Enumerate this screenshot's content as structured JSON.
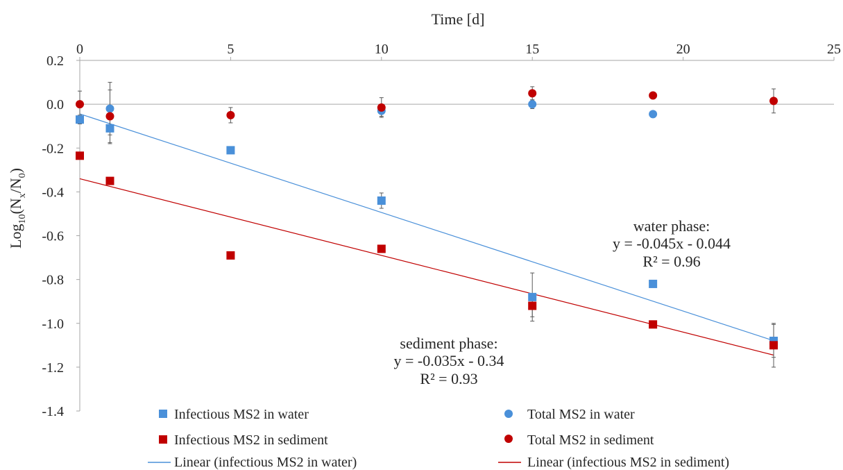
{
  "chart_data": {
    "type": "scatter",
    "xlabel": "Time [d]",
    "ylabel_parts": [
      "Log",
      "10",
      "(N",
      "x",
      "/N",
      "0",
      ")"
    ],
    "xlim": [
      0,
      25
    ],
    "ylim": [
      -1.4,
      0.2
    ],
    "x_ticks": [
      "0",
      "5",
      "10",
      "15",
      "20",
      "25"
    ],
    "y_ticks": [
      "0.2",
      "0.0",
      "-0.2",
      "-0.4",
      "-0.6",
      "-0.8",
      "-1.0",
      "-1.2",
      "-1.4"
    ],
    "x_axis_position": "top",
    "grid": false,
    "colors": {
      "water": "#4a90d9",
      "sediment": "#c00000",
      "axis": "#a6a6a6"
    },
    "series": [
      {
        "name": "Infectious MS2 in water",
        "marker": "square",
        "color": "#4a90d9",
        "points": [
          {
            "x": 0,
            "y": -0.07,
            "err": 0.02
          },
          {
            "x": 1,
            "y": -0.11,
            "err": 0.07
          },
          {
            "x": 5,
            "y": -0.21,
            "err": 0.0
          },
          {
            "x": 10,
            "y": -0.44,
            "err": 0.035
          },
          {
            "x": 15,
            "y": -0.88,
            "err": 0.11
          },
          {
            "x": 19,
            "y": -0.82,
            "err": 0.0
          },
          {
            "x": 23,
            "y": -1.08,
            "err": 0.075
          }
        ]
      },
      {
        "name": "Total MS2 in water",
        "marker": "circle",
        "color": "#4a90d9",
        "points": [
          {
            "x": 1,
            "y": -0.02,
            "err": 0.12
          },
          {
            "x": 10,
            "y": -0.03,
            "err": 0.025
          },
          {
            "x": 15,
            "y": 0.0,
            "err": 0.02
          },
          {
            "x": 19,
            "y": -0.045,
            "err": 0.0
          }
        ]
      },
      {
        "name": "Infectious MS2 in sediment",
        "marker": "square",
        "color": "#c00000",
        "points": [
          {
            "x": 0,
            "y": -0.235,
            "err": 0.0
          },
          {
            "x": 1,
            "y": -0.35,
            "err": 0.0
          },
          {
            "x": 5,
            "y": -0.69,
            "err": 0.0
          },
          {
            "x": 10,
            "y": -0.66,
            "err": 0.0
          },
          {
            "x": 15,
            "y": -0.92,
            "err": 0.05
          },
          {
            "x": 19,
            "y": -1.005,
            "err": 0.0
          },
          {
            "x": 23,
            "y": -1.1,
            "err": 0.1
          }
        ]
      },
      {
        "name": "Total MS2 in sediment",
        "marker": "circle",
        "color": "#c00000",
        "points": [
          {
            "x": 0,
            "y": 0.0,
            "err": 0.06
          },
          {
            "x": 1,
            "y": -0.055,
            "err": 0.12
          },
          {
            "x": 5,
            "y": -0.05,
            "err": 0.035
          },
          {
            "x": 10,
            "y": -0.015,
            "err": 0.045
          },
          {
            "x": 15,
            "y": 0.05,
            "err": 0.03
          },
          {
            "x": 19,
            "y": 0.04,
            "err": 0.015
          },
          {
            "x": 23,
            "y": 0.015,
            "err": 0.055
          }
        ]
      }
    ],
    "trendlines": [
      {
        "name": "Linear (infectious MS2 in water)",
        "color": "#4a90d9",
        "slope": -0.045,
        "intercept": -0.044,
        "x_range": [
          0,
          23
        ]
      },
      {
        "name": "Linear (infectious MS2 in sediment)",
        "color": "#c00000",
        "slope": -0.035,
        "intercept": -0.34,
        "x_range": [
          0,
          23
        ]
      }
    ],
    "annotations": {
      "water": [
        "water phase:",
        "y = -0.045x - 0.044",
        "R² = 0.96"
      ],
      "sediment": [
        "sediment phase:",
        "y = -0.035x - 0.34",
        "R² = 0.93"
      ]
    },
    "legend_placement": "bottom"
  }
}
